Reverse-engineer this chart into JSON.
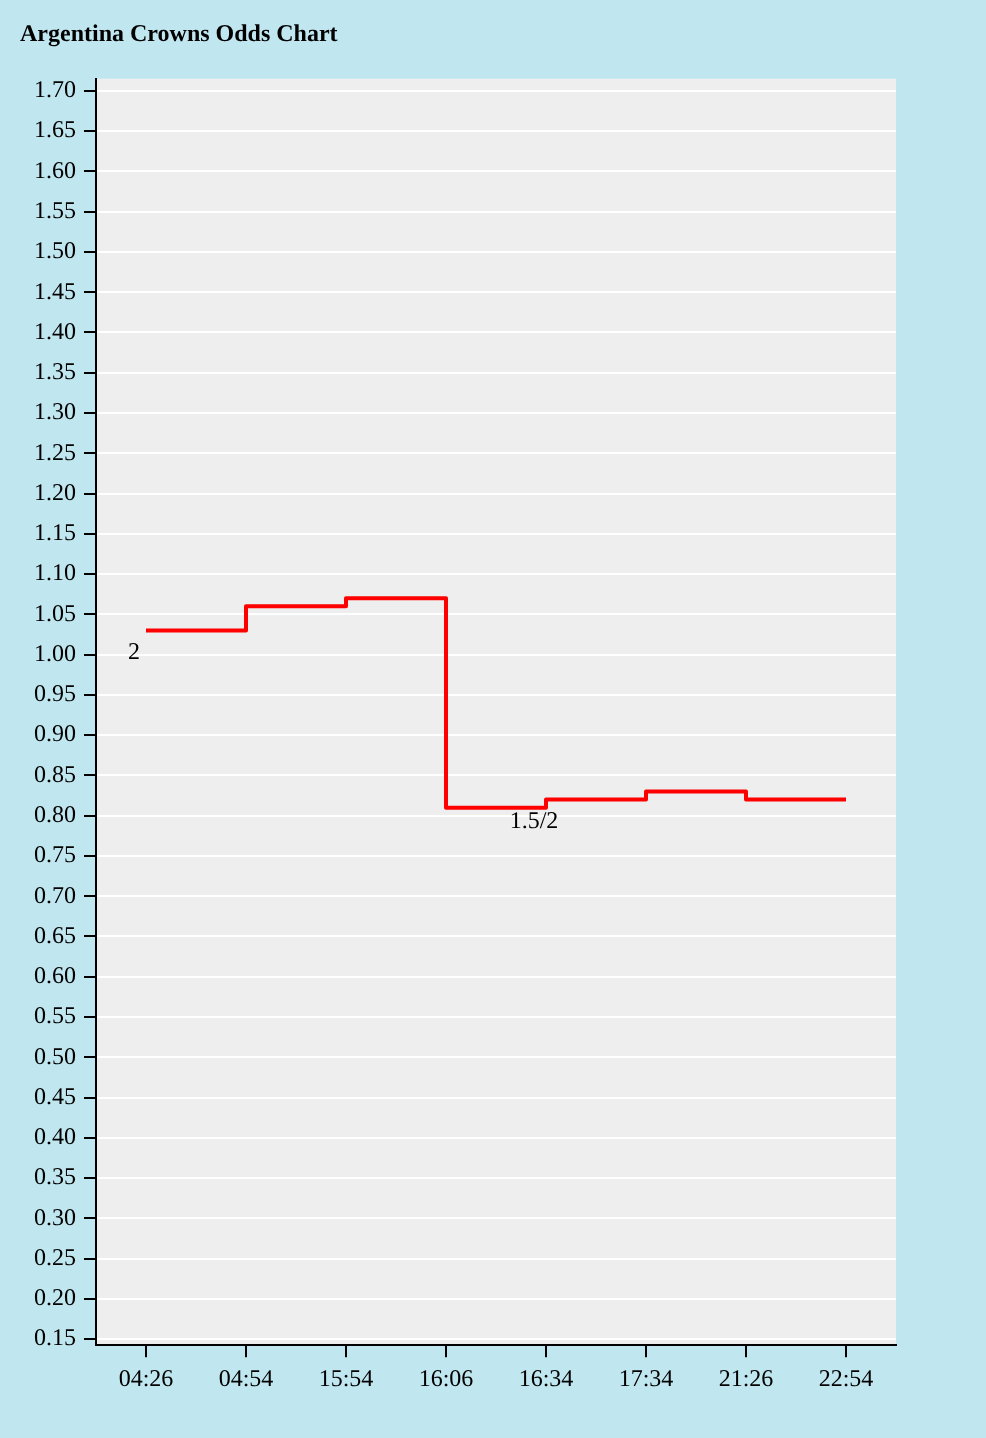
{
  "chart_data": {
    "type": "step",
    "title": "Argentina Crowns Odds Chart",
    "categories": [
      "04:26",
      "04:54",
      "15:54",
      "16:06",
      "16:34",
      "17:34",
      "21:26",
      "22:54"
    ],
    "series": [
      {
        "color": "#ff0000",
        "values": [
          1.03,
          1.06,
          1.07,
          0.81,
          0.82,
          0.83,
          0.82,
          0.82
        ]
      }
    ],
    "ylim": [
      0.1425,
      1.715
    ],
    "yticks": [
      {
        "value": 0.15,
        "label": "0.15"
      },
      {
        "value": 0.2,
        "label": "0.20"
      },
      {
        "value": 0.25,
        "label": "0.25"
      },
      {
        "value": 0.3,
        "label": "0.30"
      },
      {
        "value": 0.35,
        "label": "0.35"
      },
      {
        "value": 0.4,
        "label": "0.40"
      },
      {
        "value": 0.45,
        "label": "0.45"
      },
      {
        "value": 0.5,
        "label": "0.50"
      },
      {
        "value": 0.55,
        "label": "0.55"
      },
      {
        "value": 0.6,
        "label": "0.60"
      },
      {
        "value": 0.65,
        "label": "0.65"
      },
      {
        "value": 0.7,
        "label": "0.70"
      },
      {
        "value": 0.75,
        "label": "0.75"
      },
      {
        "value": 0.8,
        "label": "0.80"
      },
      {
        "value": 0.85,
        "label": "0.85"
      },
      {
        "value": 0.9,
        "label": "0.90"
      },
      {
        "value": 0.95,
        "label": "0.95"
      },
      {
        "value": 1.0,
        "label": "1.00"
      },
      {
        "value": 1.05,
        "label": "1.05"
      },
      {
        "value": 1.1,
        "label": "1.10"
      },
      {
        "value": 1.15,
        "label": "1.15"
      },
      {
        "value": 1.2,
        "label": "1.20"
      },
      {
        "value": 1.25,
        "label": "1.25"
      },
      {
        "value": 1.3,
        "label": "1.30"
      },
      {
        "value": 1.35,
        "label": "1.35"
      },
      {
        "value": 1.4,
        "label": "1.40"
      },
      {
        "value": 1.45,
        "label": "1.45"
      },
      {
        "value": 1.5,
        "label": "1.50"
      },
      {
        "value": 1.55,
        "label": "1.55"
      },
      {
        "value": 1.6,
        "label": "1.60"
      },
      {
        "value": 1.65,
        "label": "1.65"
      },
      {
        "value": 1.7,
        "label": "1.70"
      }
    ],
    "grid": "y",
    "legend": false,
    "marker": "none",
    "annotations": [
      {
        "text": "2",
        "x": "04:26",
        "y": 1.03
      },
      {
        "text": "1.5/2",
        "x": "16:34",
        "y": 0.82
      }
    ]
  }
}
